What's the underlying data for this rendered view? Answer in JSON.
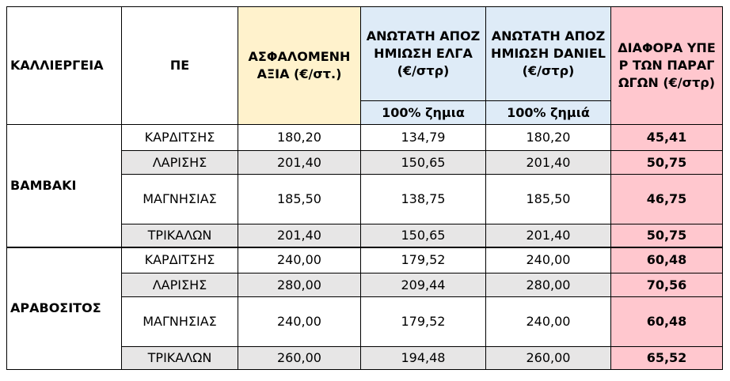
{
  "header": {
    "crop": "ΚΑΛΛΙΕΡΓΕΙΑ",
    "region": "ΠΕ",
    "insured": "ΑΣΦΑΛΟΜΕΝΗ ΑΞΙΑ (€/στ.)",
    "elga": "ΑΝΩΤΑΤΗ ΑΠΟΖΗΜΙΩΣΗ ΕΛΓΑ (€/στρ)",
    "elga_sub": "100% ζημια",
    "daniel": "ΑΝΩΤΑΤΗ ΑΠΟΖΗΜΙΩΣΗ DANIEL (€/στρ)",
    "daniel_sub": "100% ζημιά",
    "diff": "ΔΙΑΦΟΡΑ ΥΠΕΡ ΤΩΝ ΠΑΡΑΓΩΓΩΝ (€/στρ)"
  },
  "groups": [
    {
      "crop": "ΒΑΜΒΑΚΙ",
      "rows": [
        [
          "ΚΑΡΔΙΤΣΗΣ",
          "180,20",
          "134,79",
          "180,20",
          "45,41"
        ],
        [
          "ΛΑΡΙΣΗΣ",
          "201,40",
          "150,65",
          "201,40",
          "50,75"
        ],
        [
          "ΜΑΓΝΗΣΙΑΣ",
          "185,50",
          "138,75",
          "185,50",
          "46,75"
        ],
        [
          "ΤΡΙΚΑΛΩΝ",
          "201,40",
          "150,65",
          "201,40",
          "50,75"
        ]
      ]
    },
    {
      "crop": "ΑΡΑΒΟΣΙΤΟΣ",
      "rows": [
        [
          "ΚΑΡΔΙΤΣΗΣ",
          "240,00",
          "179,52",
          "240,00",
          "60,48"
        ],
        [
          "ΛΑΡΙΣΗΣ",
          "280,00",
          "209,44",
          "280,00",
          "70,56"
        ],
        [
          "ΜΑΓΝΗΣΙΑΣ",
          "240,00",
          "179,52",
          "240,00",
          "60,48"
        ],
        [
          "ΤΡΙΚΑΛΩΝ",
          "260,00",
          "194,48",
          "260,00",
          "65,52"
        ]
      ]
    }
  ]
}
